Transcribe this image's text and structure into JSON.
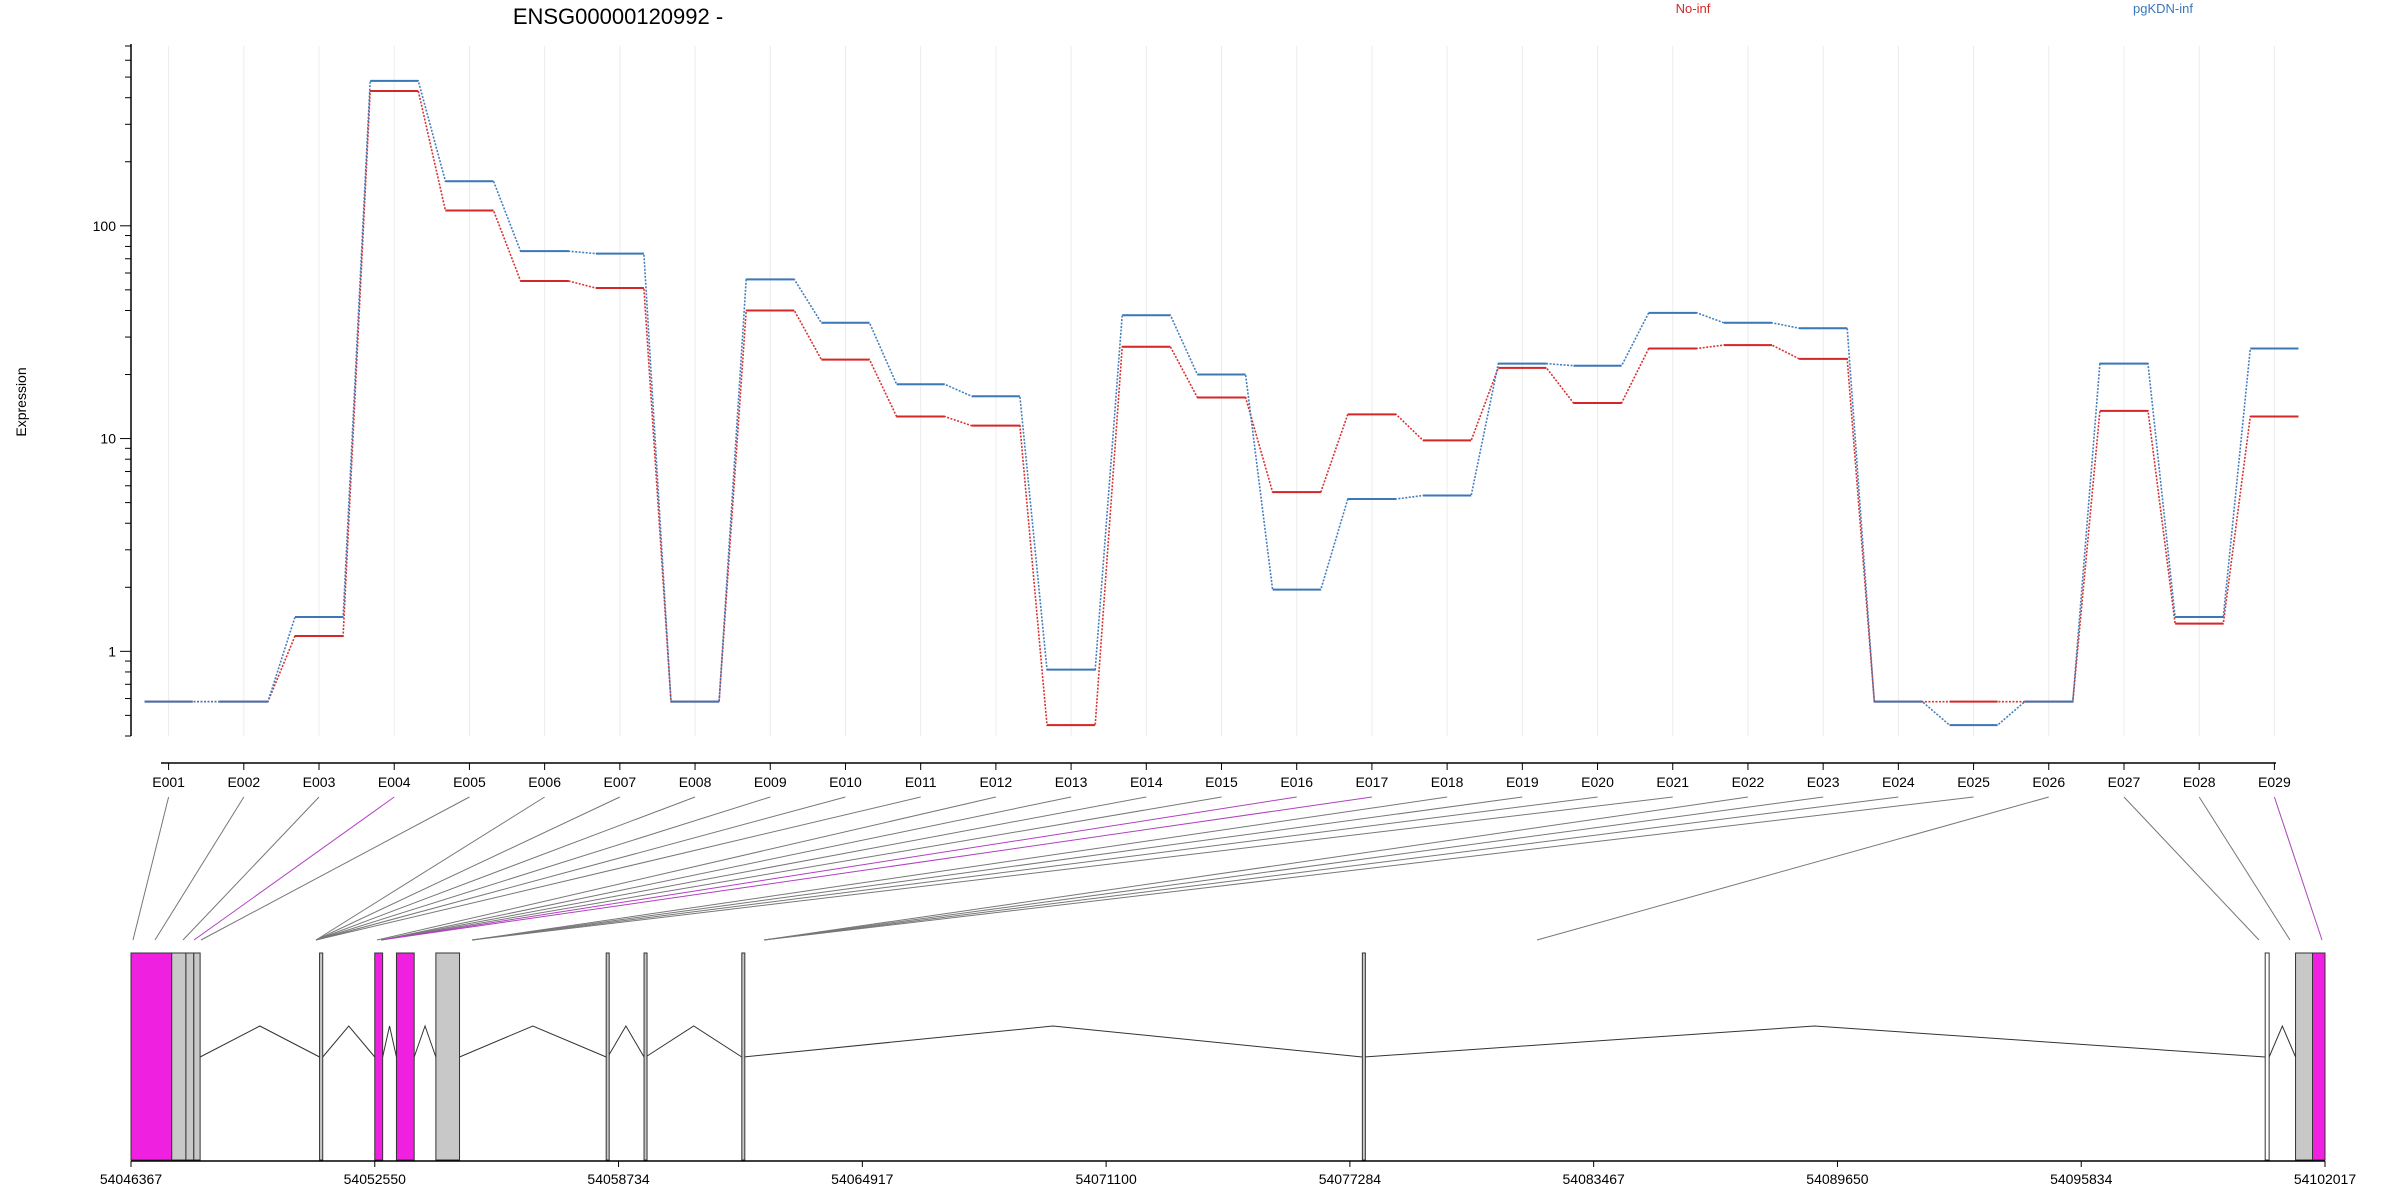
{
  "title": "ENSG00000120992 -",
  "ylabel": "Expression",
  "legend": [
    {
      "label": "No-inf",
      "color": "#d62728"
    },
    {
      "label": "pgKDN-inf",
      "color": "#3b78b8"
    }
  ],
  "chart_data": {
    "type": "line",
    "title": "ENSG00000120992 -",
    "ylabel": "Expression",
    "yscale": "log",
    "ylim": [
      0.4,
      700
    ],
    "yticks": [
      1,
      10,
      100
    ],
    "ytick_labels": [
      "1",
      "10",
      "100"
    ],
    "categories": [
      "E001",
      "E002",
      "E003",
      "E004",
      "E005",
      "E006",
      "E007",
      "E008",
      "E009",
      "E010",
      "E011",
      "E012",
      "E013",
      "E014",
      "E015",
      "E016",
      "E017",
      "E018",
      "E019",
      "E020",
      "E021",
      "E022",
      "E023",
      "E024",
      "E025",
      "E026",
      "E027",
      "E028",
      "E029"
    ],
    "series": [
      {
        "name": "No-inf",
        "color": "#d62728",
        "values": [
          0.58,
          0.58,
          1.18,
          430,
          118,
          55,
          51,
          0.58,
          40,
          23.5,
          12.7,
          11.5,
          0.45,
          27,
          15.6,
          5.6,
          13,
          9.8,
          21.5,
          14.7,
          26.5,
          27.5,
          23.7,
          0.58,
          0.58,
          0.58,
          13.5,
          1.35,
          12.7
        ]
      },
      {
        "name": "pgKDN-inf",
        "color": "#3b78b8",
        "values": [
          0.58,
          0.58,
          1.45,
          480,
          162,
          76,
          74,
          0.58,
          56,
          35,
          18,
          15.8,
          0.82,
          38,
          20,
          1.95,
          5.2,
          5.4,
          22.5,
          22,
          39,
          35,
          33,
          0.58,
          0.45,
          0.58,
          22.5,
          1.45,
          26.5
        ]
      }
    ],
    "highlighted_exons": [
      "E004",
      "E016",
      "E017",
      "E029"
    ],
    "gene_model": {
      "xlim": [
        54046367,
        54102017
      ],
      "xtick_labels": [
        "54046367",
        "54052550",
        "54058734",
        "54064917",
        "54071100",
        "54077284",
        "54083467",
        "54089650",
        "54095834",
        "54102017"
      ],
      "exon_coordinates": [
        [
          54046367,
          54047400
        ],
        [
          54047400,
          54047760
        ],
        [
          54047760,
          54047960
        ],
        [
          54047960,
          54048120
        ],
        [
          54051150,
          54051230
        ],
        [
          54052550,
          54052750
        ],
        [
          54053100,
          54053550
        ],
        [
          54054100,
          54054700
        ],
        [
          54058420,
          54058460
        ],
        [
          54059380,
          54059420
        ],
        [
          54061860,
          54061900
        ],
        [
          54077600,
          54077640
        ],
        [
          54100500,
          54100600
        ],
        [
          54101270,
          54101700
        ],
        [
          54101700,
          54102017
        ]
      ]
    }
  }
}
